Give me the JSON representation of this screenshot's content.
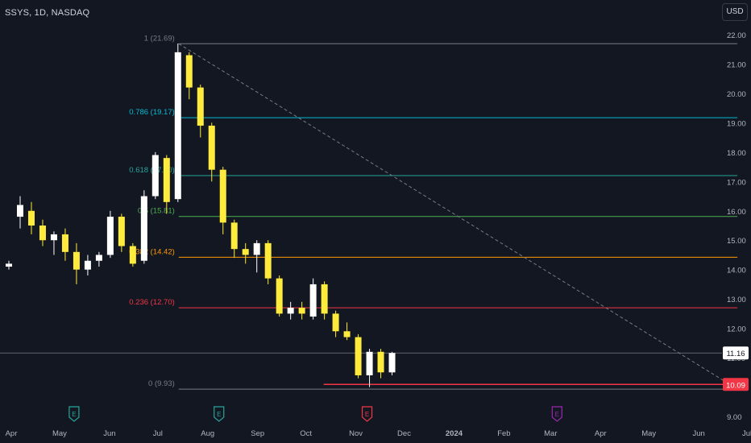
{
  "header": {
    "symbol_line": "SSYS, 1D, NASDAQ",
    "currency": "USD"
  },
  "chart_data": {
    "type": "candlestick",
    "symbol": "SSYS",
    "interval": "1D",
    "exchange": "NASDAQ",
    "ylim": [
      9.0,
      22.0
    ],
    "y_ticks": [
      "22.00",
      "21.00",
      "20.00",
      "19.00",
      "18.00",
      "17.00",
      "16.00",
      "15.00",
      "14.00",
      "13.00",
      "12.00",
      "11.00",
      "10.00",
      "9.00"
    ],
    "x_ticks": [
      {
        "label": "Apr",
        "date": "2023-04-01"
      },
      {
        "label": "May",
        "date": "2023-05-01"
      },
      {
        "label": "Jun",
        "date": "2023-06-01"
      },
      {
        "label": "Jul",
        "date": "2023-07-01"
      },
      {
        "label": "Aug",
        "date": "2023-08-01"
      },
      {
        "label": "Sep",
        "date": "2023-09-01"
      },
      {
        "label": "Oct",
        "date": "2023-10-01"
      },
      {
        "label": "Nov",
        "date": "2023-11-01"
      },
      {
        "label": "Dec",
        "date": "2023-12-01"
      },
      {
        "label": "2024",
        "date": "2024-01-01"
      },
      {
        "label": "Feb",
        "date": "2024-02-01"
      },
      {
        "label": "Mar",
        "date": "2024-03-01"
      },
      {
        "label": "Apr",
        "date": "2024-04-01"
      },
      {
        "label": "May",
        "date": "2024-05-01"
      },
      {
        "label": "Jun",
        "date": "2024-06-01"
      },
      {
        "label": "Jul",
        "date": "2024-07-01"
      }
    ],
    "fib_levels": [
      {
        "label": "1 (21.69)",
        "price": 21.69,
        "color": "#787b86"
      },
      {
        "label": "0.786 (19.17)",
        "price": 19.17,
        "color": "#00bcd4"
      },
      {
        "label": "0.618 (17.20)",
        "price": 17.2,
        "color": "#26a69a"
      },
      {
        "label": "0.5 (15.81)",
        "price": 15.81,
        "color": "#4caf50"
      },
      {
        "label": "0.382 (14.42)",
        "price": 14.42,
        "color": "#ff9800"
      },
      {
        "label": "0.236 (12.70)",
        "price": 12.7,
        "color": "#f23645"
      },
      {
        "label": "0 (9.93)",
        "price": 9.93,
        "color": "#787b86"
      }
    ],
    "fib_start_date": "2023-07-14",
    "fib_end_date": "2024-06-25",
    "support_line": {
      "price": 10.09,
      "start_date": "2023-10-12",
      "end_date": "2024-06-25",
      "color": "#f23645"
    },
    "current_price": {
      "label": "11.16",
      "value": 11.16,
      "color": "#ffffff"
    },
    "support_price": {
      "label": "10.09",
      "value": 10.09,
      "color": "#f23645"
    },
    "earnings_markers": [
      {
        "date": "2023-05-10",
        "label": "E",
        "color": "#26a69a"
      },
      {
        "date": "2023-08-08",
        "label": "E",
        "color": "#26a69a"
      },
      {
        "date": "2023-11-08",
        "label": "E",
        "color": "#f23645"
      },
      {
        "date": "2024-03-05",
        "label": "E",
        "color": "#9c27b0"
      }
    ],
    "candles": [
      {
        "date": "2023-03-27",
        "open": 14.1,
        "high": 14.3,
        "low": 14.0,
        "close": 14.2
      },
      {
        "date": "2023-04-03",
        "open": 15.8,
        "high": 16.5,
        "low": 15.4,
        "close": 16.2
      },
      {
        "date": "2023-04-10",
        "open": 16.0,
        "high": 16.3,
        "low": 15.2,
        "close": 15.5
      },
      {
        "date": "2023-04-17",
        "open": 15.5,
        "high": 15.7,
        "low": 14.8,
        "close": 15.0
      },
      {
        "date": "2023-04-24",
        "open": 15.0,
        "high": 15.3,
        "low": 14.5,
        "close": 15.2
      },
      {
        "date": "2023-05-01",
        "open": 15.2,
        "high": 15.4,
        "low": 14.3,
        "close": 14.6
      },
      {
        "date": "2023-05-08",
        "open": 14.6,
        "high": 14.9,
        "low": 13.5,
        "close": 14.0
      },
      {
        "date": "2023-05-15",
        "open": 14.0,
        "high": 14.5,
        "low": 13.8,
        "close": 14.3
      },
      {
        "date": "2023-05-22",
        "open": 14.3,
        "high": 14.6,
        "low": 14.1,
        "close": 14.5
      },
      {
        "date": "2023-05-29",
        "open": 14.5,
        "high": 16.0,
        "low": 14.4,
        "close": 15.8
      },
      {
        "date": "2023-06-05",
        "open": 15.8,
        "high": 15.9,
        "low": 14.6,
        "close": 14.8
      },
      {
        "date": "2023-06-12",
        "open": 14.8,
        "high": 14.9,
        "low": 14.1,
        "close": 14.2
      },
      {
        "date": "2023-06-19",
        "open": 14.3,
        "high": 16.7,
        "low": 14.2,
        "close": 16.5
      },
      {
        "date": "2023-06-26",
        "open": 16.5,
        "high": 18.0,
        "low": 16.4,
        "close": 17.9
      },
      {
        "date": "2023-07-03",
        "open": 17.8,
        "high": 17.9,
        "low": 15.9,
        "close": 16.3
      },
      {
        "date": "2023-07-10",
        "open": 16.4,
        "high": 21.7,
        "low": 16.3,
        "close": 21.4
      },
      {
        "date": "2023-07-17",
        "open": 21.3,
        "high": 21.4,
        "low": 19.8,
        "close": 20.2
      },
      {
        "date": "2023-07-24",
        "open": 20.2,
        "high": 20.3,
        "low": 18.5,
        "close": 18.9
      },
      {
        "date": "2023-07-31",
        "open": 18.9,
        "high": 19.0,
        "low": 17.0,
        "close": 17.4
      },
      {
        "date": "2023-08-07",
        "open": 17.4,
        "high": 17.5,
        "low": 15.2,
        "close": 15.6
      },
      {
        "date": "2023-08-14",
        "open": 15.6,
        "high": 15.7,
        "low": 14.4,
        "close": 14.7
      },
      {
        "date": "2023-08-21",
        "open": 14.7,
        "high": 14.9,
        "low": 14.2,
        "close": 14.5
      },
      {
        "date": "2023-08-28",
        "open": 14.5,
        "high": 15.0,
        "low": 13.9,
        "close": 14.9
      },
      {
        "date": "2023-09-04",
        "open": 14.9,
        "high": 15.0,
        "low": 13.5,
        "close": 13.7
      },
      {
        "date": "2023-09-11",
        "open": 13.7,
        "high": 13.8,
        "low": 12.4,
        "close": 12.5
      },
      {
        "date": "2023-09-18",
        "open": 12.5,
        "high": 12.9,
        "low": 12.3,
        "close": 12.7
      },
      {
        "date": "2023-09-25",
        "open": 12.7,
        "high": 12.9,
        "low": 12.3,
        "close": 12.5
      },
      {
        "date": "2023-10-02",
        "open": 12.4,
        "high": 13.7,
        "low": 12.3,
        "close": 13.5
      },
      {
        "date": "2023-10-09",
        "open": 13.5,
        "high": 13.6,
        "low": 12.3,
        "close": 12.5
      },
      {
        "date": "2023-10-16",
        "open": 12.5,
        "high": 12.6,
        "low": 11.7,
        "close": 11.9
      },
      {
        "date": "2023-10-23",
        "open": 11.9,
        "high": 12.2,
        "low": 11.6,
        "close": 11.7
      },
      {
        "date": "2023-10-30",
        "open": 11.7,
        "high": 11.8,
        "low": 10.3,
        "close": 10.4
      },
      {
        "date": "2023-11-06",
        "open": 10.4,
        "high": 11.3,
        "low": 10.0,
        "close": 11.2
      },
      {
        "date": "2023-11-13",
        "open": 11.2,
        "high": 11.3,
        "low": 10.3,
        "close": 10.5
      },
      {
        "date": "2023-11-20",
        "open": 10.5,
        "high": 11.2,
        "low": 10.4,
        "close": 11.16
      }
    ]
  }
}
